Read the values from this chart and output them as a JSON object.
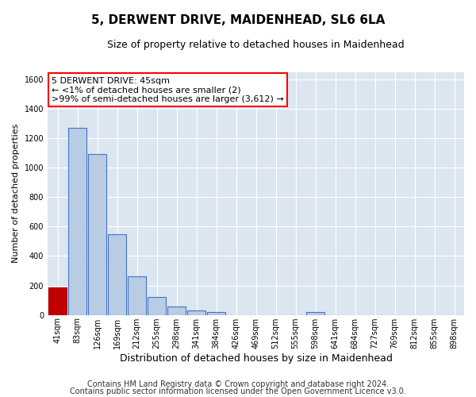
{
  "title": "5, DERWENT DRIVE, MAIDENHEAD, SL6 6LA",
  "subtitle": "Size of property relative to detached houses in Maidenhead",
  "xlabel": "Distribution of detached houses by size in Maidenhead",
  "ylabel": "Number of detached properties",
  "footnote1": "Contains HM Land Registry data © Crown copyright and database right 2024.",
  "footnote2": "Contains public sector information licensed under the Open Government Licence v3.0.",
  "bin_labels": [
    "41sqm",
    "83sqm",
    "126sqm",
    "169sqm",
    "212sqm",
    "255sqm",
    "298sqm",
    "341sqm",
    "384sqm",
    "426sqm",
    "469sqm",
    "512sqm",
    "555sqm",
    "598sqm",
    "641sqm",
    "684sqm",
    "727sqm",
    "769sqm",
    "812sqm",
    "855sqm",
    "898sqm"
  ],
  "bar_values": [
    185,
    1270,
    1090,
    550,
    260,
    120,
    57,
    30,
    18,
    0,
    0,
    0,
    0,
    18,
    0,
    0,
    0,
    0,
    0,
    0,
    0
  ],
  "bar_color": "#b8cce4",
  "bar_edge_color": "#4472c4",
  "highlight_bar_color": "#c00000",
  "highlight_bar_edge_color": "#c00000",
  "annotation_text": "5 DERWENT DRIVE: 45sqm\n← <1% of detached houses are smaller (2)\n>99% of semi-detached houses are larger (3,612) →",
  "annotation_box_facecolor": "#ffffff",
  "annotation_box_edgecolor": "#ff0000",
  "ylim": [
    0,
    1650
  ],
  "yticks": [
    0,
    200,
    400,
    600,
    800,
    1000,
    1200,
    1400,
    1600
  ],
  "fig_bg_color": "#ffffff",
  "plot_bg_color": "#dce6f1",
  "grid_color": "#ffffff",
  "title_fontsize": 11,
  "subtitle_fontsize": 9,
  "footnote_fontsize": 7,
  "ylabel_fontsize": 8,
  "xlabel_fontsize": 9,
  "tick_fontsize": 7,
  "annot_fontsize": 8
}
